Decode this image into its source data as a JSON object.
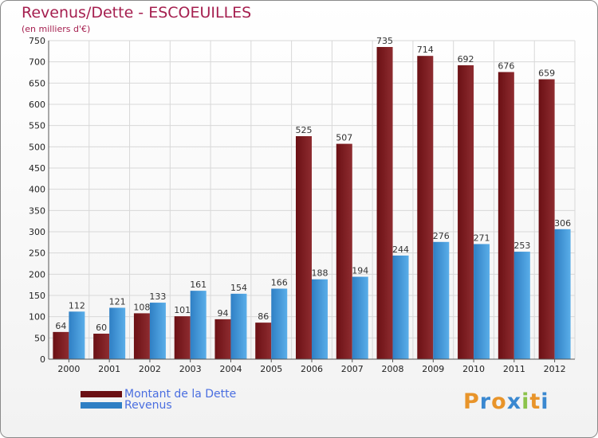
{
  "title": "Revenus/Dette - ESCOEUILLES",
  "subtitle": "(en milliers d'€)",
  "colors": {
    "dette": "#6b1014",
    "dette_light": "#8e2c30",
    "revenus": "#2f7fc4",
    "revenus_light": "#5aaee9",
    "title": "#a51f4f",
    "legend_text": "#4a6ee0"
  },
  "legend": {
    "dette_label": "Montant de la Dette",
    "revenus_label": "Revenus"
  },
  "logo": {
    "text": "Proxiti",
    "letter_colors": [
      "#e8942a",
      "#3a88d0",
      "#e8942a",
      "#3a88d0",
      "#8bc34a",
      "#e8942a",
      "#3a88d0"
    ]
  },
  "chart_data": {
    "type": "bar",
    "categories": [
      "2000",
      "2001",
      "2002",
      "2003",
      "2004",
      "2005",
      "2006",
      "2007",
      "2008",
      "2009",
      "2010",
      "2011",
      "2012"
    ],
    "series": [
      {
        "name": "Montant de la Dette",
        "values": [
          64,
          60,
          108,
          101,
          94,
          86,
          525,
          507,
          735,
          714,
          692,
          676,
          659
        ]
      },
      {
        "name": "Revenus",
        "values": [
          112,
          121,
          133,
          161,
          154,
          166,
          188,
          194,
          244,
          276,
          271,
          253,
          306
        ]
      }
    ],
    "ylim": [
      0,
      750
    ],
    "yticks": [
      0,
      50,
      100,
      150,
      200,
      250,
      300,
      350,
      400,
      450,
      500,
      550,
      600,
      650,
      700,
      750
    ],
    "grid": true,
    "legend_position": "bottom-left"
  }
}
